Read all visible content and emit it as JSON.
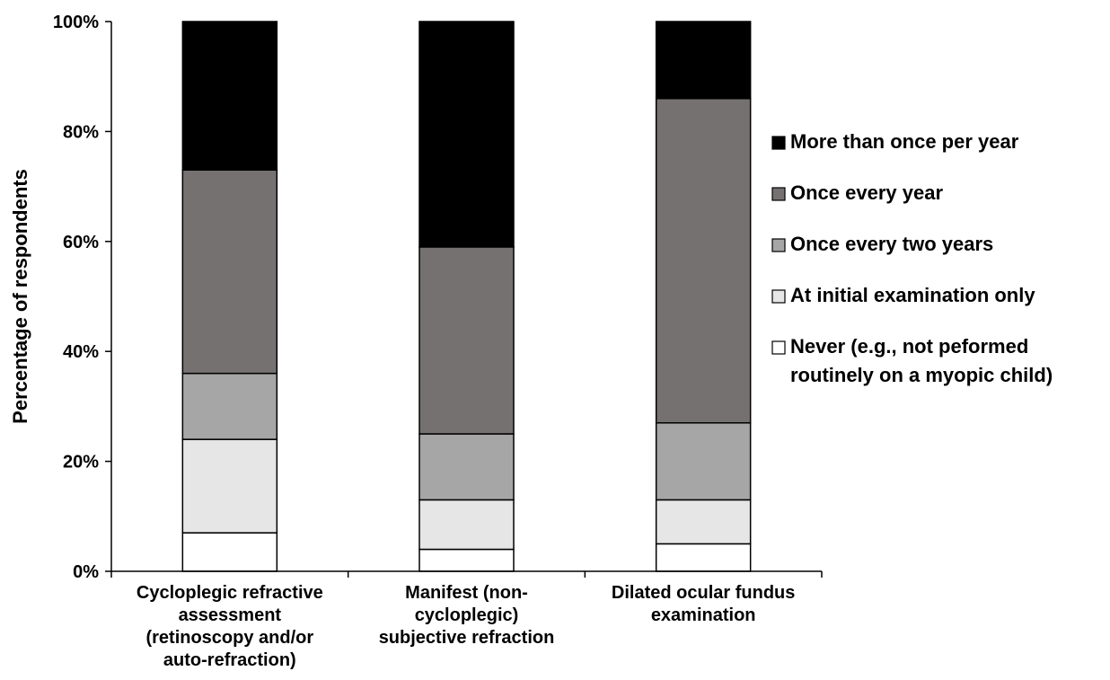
{
  "chart_data": {
    "type": "bar",
    "stacked": true,
    "ylabel": "Percentage of respondents",
    "xlabel": "",
    "ylim": [
      0,
      100
    ],
    "yticks": [
      "0%",
      "20%",
      "40%",
      "60%",
      "80%",
      "100%"
    ],
    "categories": [
      [
        "Cycloplegic refractive",
        "assessment",
        "(retinoscopy and/or",
        "auto-refraction)"
      ],
      [
        "Manifest (non-",
        "cycloplegic)",
        "subjective refraction"
      ],
      [
        "Dilated ocular fundus",
        "examination"
      ]
    ],
    "series": [
      {
        "name": "Never (e.g., not peformed routinely on a myopic child)",
        "values": [
          7,
          4,
          5
        ],
        "color": "#ffffff"
      },
      {
        "name": "At initial examination only",
        "values": [
          17,
          9,
          8
        ],
        "color": "#e6e6e6"
      },
      {
        "name": "Once every two years",
        "values": [
          12,
          12,
          14
        ],
        "color": "#a6a6a6"
      },
      {
        "name": "Once every year",
        "values": [
          37,
          34,
          59
        ],
        "color": "#767171"
      },
      {
        "name": "More than once per year",
        "values": [
          27,
          41,
          14
        ],
        "color": "#000000"
      }
    ],
    "legend": {
      "position": "right",
      "entries": [
        {
          "series": 4,
          "lines": [
            "More than once per year"
          ]
        },
        {
          "series": 3,
          "lines": [
            "Once every year"
          ]
        },
        {
          "series": 2,
          "lines": [
            "Once every two years"
          ]
        },
        {
          "series": 1,
          "lines": [
            "At initial examination only"
          ]
        },
        {
          "series": 0,
          "lines": [
            "Never (e.g., not peformed",
            "routinely on a myopic child)"
          ]
        }
      ]
    },
    "grid": false
  }
}
